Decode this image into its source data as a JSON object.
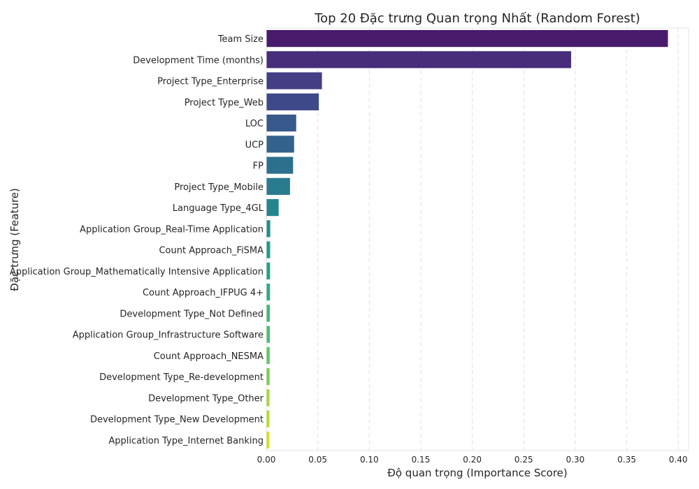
{
  "chart_data": {
    "type": "bar",
    "orientation": "horizontal",
    "title": "Top 20 Đặc trưng Quan trọng Nhất (Random Forest)",
    "xlabel": "Độ quan trọng (Importance Score)",
    "ylabel": "Đặc trưng (Feature)",
    "xlim": [
      0,
      0.41
    ],
    "xticks": [
      0.0,
      0.05,
      0.1,
      0.15,
      0.2,
      0.25,
      0.3,
      0.35,
      0.4
    ],
    "xtick_labels": [
      "0.00",
      "0.05",
      "0.10",
      "0.15",
      "0.20",
      "0.25",
      "0.30",
      "0.35",
      "0.40"
    ],
    "grid": "x",
    "palette": "viridis",
    "categories": [
      "Team Size",
      "Development Time (months)",
      "Project Type_Enterprise",
      "Project Type_Web",
      "LOC",
      "UCP",
      "FP",
      "Project Type_Mobile",
      "Language Type_4GL",
      "Application Group_Real-Time Application",
      "Count Approach_FiSMA",
      "Application Group_Mathematically Intensive Application",
      "Count Approach_IFPUG 4+",
      "Development Type_Not Defined",
      "Application Group_Infrastructure Software",
      "Count Approach_NESMA",
      "Development Type_Re-development",
      "Development Type_Other",
      "Development Type_New Development",
      "Application Type_Internet Banking"
    ],
    "values": [
      0.39,
      0.296,
      0.054,
      0.051,
      0.029,
      0.027,
      0.026,
      0.023,
      0.012,
      0.0038,
      0.0037,
      0.0036,
      0.0035,
      0.0034,
      0.0034,
      0.0033,
      0.0032,
      0.0031,
      0.003,
      0.0029
    ],
    "colors": [
      "#481a6c",
      "#472d7b",
      "#433e85",
      "#3e4989",
      "#38598c",
      "#33638d",
      "#2d708e",
      "#297a8e",
      "#25858e",
      "#218f8d",
      "#1f9a8a",
      "#20a386",
      "#28ae80",
      "#3bbb75",
      "#4ac16d",
      "#5ec962",
      "#75d054",
      "#a2da37",
      "#b5de2b",
      "#cde11d"
    ]
  }
}
